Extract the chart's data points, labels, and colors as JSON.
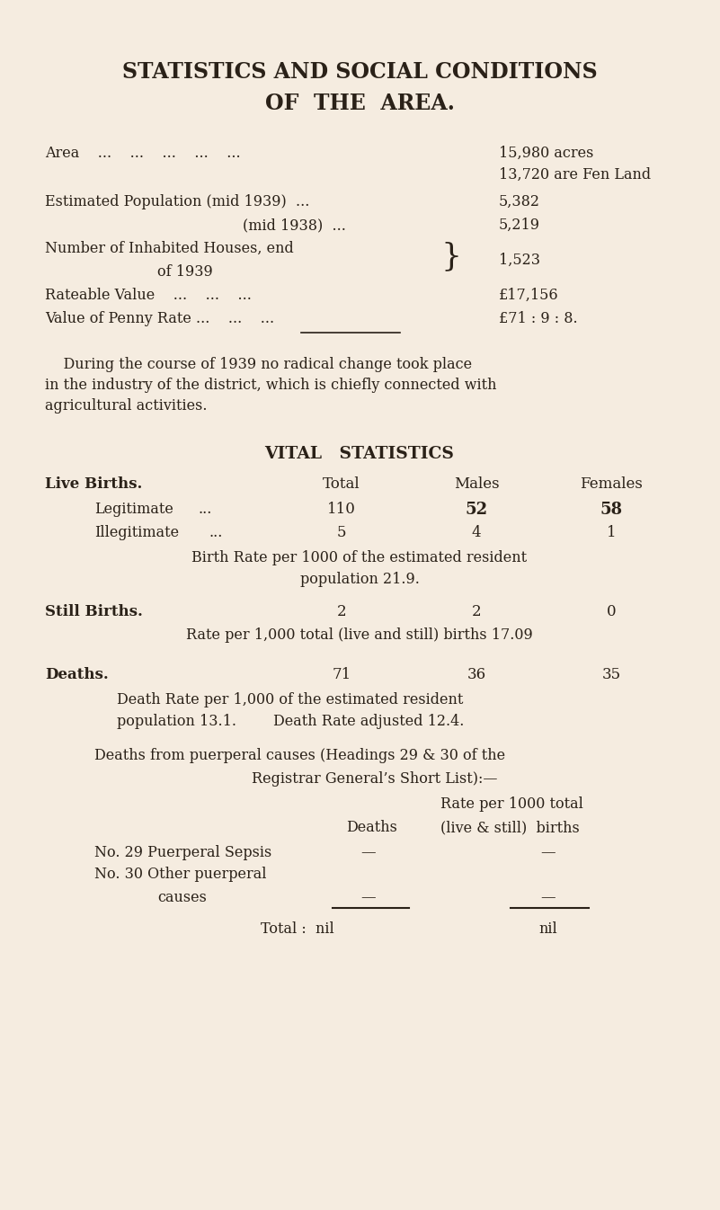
{
  "bg_color": "#f5ece0",
  "text_color": "#2a2118",
  "title_line1": "STATISTICS AND SOCIAL CONDITIONS",
  "title_line2": "OF  THE  AREA.",
  "area_label": "Area    ...    ...    ...    ...    ...",
  "area_val1": "15,980 acres",
  "area_val2": "13,720 are Fen Land",
  "pop1939_label": "Estimated Population (mid 1939)  ...",
  "pop1939_val": "5,382",
  "pop1938_label": "(mid 1938)  ...",
  "pop1938_val": "5,219",
  "houses_label1": "Number of Inhabited Houses, end",
  "houses_label2": "of 1939",
  "houses_bracket": "}",
  "houses_val": "1,523",
  "rateable_label": "Rateable Value    ...    ...    ...",
  "rateable_val": "£17,156",
  "penny_label": "Value of Penny Rate ...    ...    ...",
  "penny_val": "£71 : 9 : 8.",
  "para_line1": "    During the course of 1939 no radical change took place",
  "para_line2": "in the industry of the district, which is chiefly connected with",
  "para_line3": "agricultural activities.",
  "vital_title": "VITAL   STATISTICS",
  "lb_header_label": "Live Births.",
  "lb_header_total": "Total",
  "lb_header_males": "Males",
  "lb_header_females": "Females",
  "lb_legit_label": "Legitimate",
  "lb_legit_dots": "...",
  "lb_legit_total": "110",
  "lb_legit_males": "52",
  "lb_legit_females": "58",
  "lb_illeg_label": "Illegitimate",
  "lb_illeg_dots": "...",
  "lb_illeg_total": "5",
  "lb_illeg_males": "4",
  "lb_illeg_females": "1",
  "lb_rate_line1": "Birth Rate per 1000 of the estimated resident",
  "lb_rate_line2": "population 21.9.",
  "sb_label": "Still Births.",
  "sb_total": "2",
  "sb_males": "2",
  "sb_females": "0",
  "sb_rate": "Rate per 1,000 total (live and still) births 17.09",
  "d_label": "Deaths.",
  "d_total": "71",
  "d_males": "36",
  "d_females": "35",
  "d_rate1": "Death Rate per 1,000 of the estimated resident",
  "d_rate2": "population 13.1.        Death Rate adjusted 12.4.",
  "puerp_intro1": "Deaths from puerperal causes (Headings 29 & 30 of the",
  "puerp_intro2": "Registrar General’s Short List):—",
  "puerp_col1_label": "Deaths",
  "puerp_col2_line1": "Rate per 1000 total",
  "puerp_col2_line2": "(live & still)  births",
  "puerp29_label": "No. 29 Puerperal Sepsis",
  "puerp29_d": "—",
  "puerp29_r": "—",
  "puerp30_label1": "No. 30 Other puerperal",
  "puerp30_label2": "causes",
  "puerp30_d": "—",
  "puerp30_r": "—",
  "total_label": "Total :  nil",
  "total_val": "nil",
  "fw": 8.01,
  "fh": 13.46,
  "dpi": 100
}
